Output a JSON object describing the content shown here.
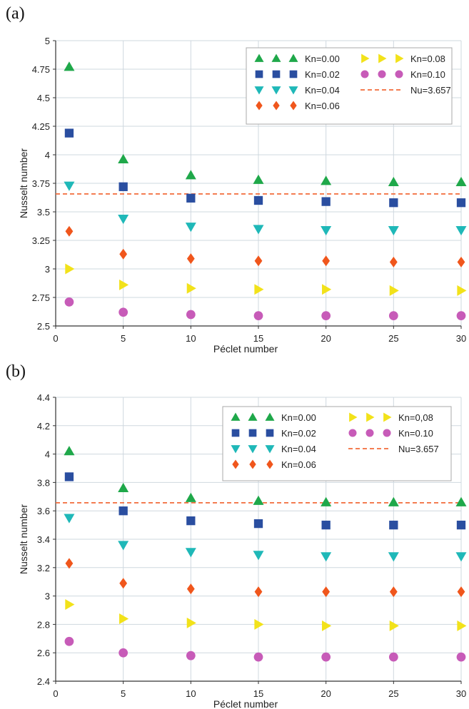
{
  "panel_labels": {
    "a": "(a)",
    "b": "(b)"
  },
  "colors": {
    "Kn=0.00": "#1fa84a",
    "Kn=0.02": "#2a4ea0",
    "Kn=0.04": "#1fb8b8",
    "Kn=0.06": "#f0561c",
    "Kn=0.08": "#f2e21a",
    "Kn=0.10": "#c75bb8",
    "reference": "#f26b3a"
  },
  "chart_data": [
    {
      "type": "scatter",
      "panel": "(a)",
      "xlabel": "Péclet number",
      "ylabel": "Nusselt number",
      "xlim": [
        0,
        30
      ],
      "ylim": [
        2.5,
        5
      ],
      "xticks": [
        0,
        5,
        10,
        15,
        20,
        25,
        30
      ],
      "yticks": [
        "2.5",
        "2.75",
        "3",
        "3.25",
        "3.5",
        "3.75",
        "4",
        "4.25",
        "4.5",
        "4.75",
        "5"
      ],
      "grid": true,
      "legend_position": "top-right",
      "x": [
        1,
        5,
        10,
        15,
        20,
        25,
        30
      ],
      "series": [
        {
          "name": "Kn=0.00",
          "marker": "triangle-up",
          "color": "#1fa84a",
          "values": [
            4.77,
            3.96,
            3.82,
            3.78,
            3.77,
            3.76,
            3.76
          ]
        },
        {
          "name": "Kn=0.02",
          "marker": "square",
          "color": "#2a4ea0",
          "values": [
            4.19,
            3.72,
            3.62,
            3.6,
            3.59,
            3.58,
            3.58
          ]
        },
        {
          "name": "Kn=0.04",
          "marker": "triangle-down",
          "color": "#1fb8b8",
          "values": [
            3.73,
            3.44,
            3.37,
            3.35,
            3.34,
            3.34,
            3.34
          ]
        },
        {
          "name": "Kn=0.06",
          "marker": "diamond",
          "color": "#f0561c",
          "values": [
            3.33,
            3.13,
            3.09,
            3.07,
            3.07,
            3.06,
            3.06
          ]
        },
        {
          "name": "Kn=0.08",
          "marker": "triangle-right",
          "color": "#f2e21a",
          "values": [
            3.0,
            2.86,
            2.83,
            2.82,
            2.82,
            2.81,
            2.81
          ]
        },
        {
          "name": "Kn=0.10",
          "marker": "circle",
          "color": "#c75bb8",
          "values": [
            2.71,
            2.62,
            2.6,
            2.59,
            2.59,
            2.59,
            2.59
          ]
        }
      ],
      "reference_line": {
        "name": "Nu=3.657",
        "value": 3.657,
        "color": "#f26b3a"
      },
      "legend": [
        {
          "series": "Kn=0.00",
          "label": "Kn=0.00"
        },
        {
          "series": "Kn=0.08",
          "label": "Kn=0.08"
        },
        {
          "series": "Kn=0.02",
          "label": "Kn=0.02"
        },
        {
          "series": "Kn=0.10",
          "label": "Kn=0.10"
        },
        {
          "series": "Kn=0.04",
          "label": "Kn=0.04"
        },
        {
          "series": "reference",
          "label": "Nu=3.657"
        },
        {
          "series": "Kn=0.06",
          "label": "Kn=0.06"
        }
      ]
    },
    {
      "type": "scatter",
      "panel": "(b)",
      "xlabel": "Péclet number",
      "ylabel": "Nusselt number",
      "xlim": [
        0,
        30
      ],
      "ylim": [
        2.4,
        4.4
      ],
      "xticks": [
        0,
        5,
        10,
        15,
        20,
        25,
        30
      ],
      "yticks": [
        "2.4",
        "2.6",
        "2.8",
        "3",
        "3.2",
        "3.4",
        "3.6",
        "3.8",
        "4",
        "4.2",
        "4.4"
      ],
      "grid": true,
      "legend_position": "top-right",
      "x": [
        1,
        5,
        10,
        15,
        20,
        25,
        30
      ],
      "series": [
        {
          "name": "Kn=0.00",
          "marker": "triangle-up",
          "color": "#1fa84a",
          "values": [
            4.02,
            3.76,
            3.69,
            3.67,
            3.66,
            3.66,
            3.66
          ]
        },
        {
          "name": "Kn=0.02",
          "marker": "square",
          "color": "#2a4ea0",
          "values": [
            3.84,
            3.6,
            3.53,
            3.51,
            3.5,
            3.5,
            3.5
          ]
        },
        {
          "name": "Kn=0.04",
          "marker": "triangle-down",
          "color": "#1fb8b8",
          "values": [
            3.55,
            3.36,
            3.31,
            3.29,
            3.28,
            3.28,
            3.28
          ]
        },
        {
          "name": "Kn=0.06",
          "marker": "diamond",
          "color": "#f0561c",
          "values": [
            3.23,
            3.09,
            3.05,
            3.03,
            3.03,
            3.03,
            3.03
          ]
        },
        {
          "name": "Kn=0,08",
          "marker": "triangle-right",
          "color": "#f2e21a",
          "values": [
            2.94,
            2.84,
            2.81,
            2.8,
            2.79,
            2.79,
            2.79
          ]
        },
        {
          "name": "Kn=0.10",
          "marker": "circle",
          "color": "#c75bb8",
          "values": [
            2.68,
            2.6,
            2.58,
            2.57,
            2.57,
            2.57,
            2.57
          ]
        }
      ],
      "reference_line": {
        "name": "Nu=3.657",
        "value": 3.657,
        "color": "#f26b3a"
      },
      "legend": [
        {
          "series": "Kn=0.00",
          "label": "Kn=0.00"
        },
        {
          "series": "Kn=0,08",
          "label": "Kn=0,08"
        },
        {
          "series": "Kn=0.02",
          "label": "Kn=0.02"
        },
        {
          "series": "Kn=0.10",
          "label": "Kn=0.10"
        },
        {
          "series": "Kn=0.04",
          "label": "Kn=0.04"
        },
        {
          "series": "reference",
          "label": "Nu=3.657"
        },
        {
          "series": "Kn=0.06",
          "label": "Kn=0.06"
        }
      ]
    }
  ]
}
